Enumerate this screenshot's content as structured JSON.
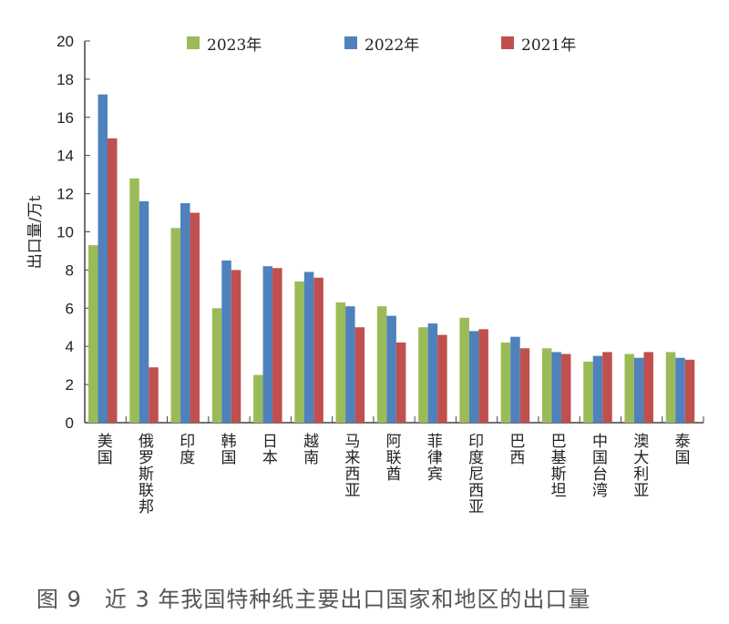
{
  "chart_data": {
    "type": "bar",
    "title": "",
    "ylabel": "出口量/万t",
    "xlabel": "",
    "ylim": [
      0,
      20
    ],
    "yticks": [
      0,
      2,
      4,
      6,
      8,
      10,
      12,
      14,
      16,
      18,
      20
    ],
    "grid": false,
    "legend_position": "top",
    "categories": [
      "美国",
      "俄罗斯联邦",
      "印度",
      "韩国",
      "日本",
      "越南",
      "马来西亚",
      "阿联酋",
      "菲律宾",
      "印度尼西亚",
      "巴西",
      "巴基斯坦",
      "中国台湾",
      "澳大利亚",
      "泰国"
    ],
    "series": [
      {
        "name": "2023年",
        "color": "#9bbb59",
        "values": [
          9.3,
          12.8,
          10.2,
          6.0,
          2.5,
          7.4,
          6.3,
          6.1,
          5.0,
          5.5,
          4.2,
          3.9,
          3.2,
          3.6,
          3.7
        ]
      },
      {
        "name": "2022年",
        "color": "#4f81bd",
        "values": [
          17.2,
          11.6,
          11.5,
          8.5,
          8.2,
          7.9,
          6.1,
          5.6,
          5.2,
          4.8,
          4.5,
          3.7,
          3.5,
          3.4,
          3.4
        ]
      },
      {
        "name": "2021年",
        "color": "#c0504d",
        "values": [
          14.9,
          2.9,
          11.0,
          8.0,
          8.1,
          7.6,
          5.0,
          4.2,
          4.6,
          4.9,
          3.9,
          3.6,
          3.7,
          3.7,
          3.3
        ]
      }
    ]
  },
  "caption": "图 9　近 3 年我国特种纸主要出口国家和地区的出口量"
}
